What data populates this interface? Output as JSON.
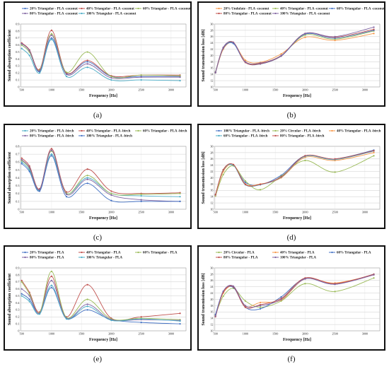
{
  "panels": [
    {
      "caption": "(a)",
      "chart_data": {
        "type": "line",
        "xlabel": "Frequency [Hz]",
        "ylabel": "Sound absorption coefficient",
        "ylim": [
          0,
          0.9
        ],
        "yticks": [
          "0",
          "0.1",
          "0.2",
          "0.3",
          "0.4",
          "0.5",
          "0.6",
          "0.7",
          "0.8",
          "0.9"
        ],
        "xticks": [
          "500",
          "1000",
          "1500",
          "2000",
          "2500",
          "3000"
        ],
        "x": [
          500,
          630,
          800,
          1000,
          1250,
          1600,
          2000,
          2500,
          3150
        ],
        "xlim": [
          480,
          3250
        ],
        "grid": "horizontal",
        "legend_position": "top",
        "series": [
          {
            "name": "20% Triangular - PLA -coconut",
            "color": "#4472C4",
            "values": [
              0.6,
              0.5,
              0.22,
              0.7,
              0.19,
              0.36,
              0.15,
              0.15,
              0.15
            ]
          },
          {
            "name": "40% Triangular - PLA -coconut",
            "color": "#C0504D",
            "values": [
              0.63,
              0.53,
              0.25,
              0.81,
              0.2,
              0.38,
              0.16,
              0.17,
              0.17
            ]
          },
          {
            "name": "60% Triangular - PLA -coconut",
            "color": "#9BBB59",
            "values": [
              0.6,
              0.5,
              0.24,
              0.76,
              0.21,
              0.5,
              0.15,
              0.17,
              0.16
            ]
          },
          {
            "name": "80% Triangular - PLA -coconut",
            "color": "#8064A2",
            "values": [
              0.62,
              0.52,
              0.23,
              0.74,
              0.18,
              0.33,
              0.13,
              0.14,
              0.14
            ]
          },
          {
            "name": "100% Triangular - PLA -coconut",
            "color": "#4BACC6",
            "values": [
              0.55,
              0.45,
              0.2,
              0.68,
              0.15,
              0.28,
              0.1,
              0.1,
              0.09
            ]
          }
        ]
      }
    },
    {
      "caption": "(b)",
      "chart_data": {
        "type": "line",
        "xlabel": "Frequency [Hz]",
        "ylabel": "Sound transmission loss [dB]",
        "ylim": [
          10,
          30
        ],
        "yticks": [
          "10",
          "12",
          "14",
          "16",
          "18",
          "20",
          "22",
          "24",
          "26",
          "28",
          "30"
        ],
        "xticks": [
          "500",
          "1000",
          "1500",
          "2000",
          "2500",
          "3000"
        ],
        "x": [
          500,
          630,
          800,
          1000,
          1250,
          1600,
          2000,
          2500,
          3150
        ],
        "xlim": [
          480,
          3250
        ],
        "grid": "horizontal",
        "legend_position": "top",
        "series": [
          {
            "name": "20% Undulate - PLA -coconut",
            "color": "#F79646",
            "values": [
              14.5,
              22,
              24,
              18.5,
              17.8,
              20.5,
              25.8,
              24.8,
              27
            ]
          },
          {
            "name": "40% Triangular - PLA -coconut",
            "color": "#9BBB59",
            "values": [
              14.8,
              22.5,
              24,
              18,
              17.5,
              20,
              26.5,
              25.2,
              27.8
            ]
          },
          {
            "name": "60% Triangular - PLA -coconut",
            "color": "#4472C4",
            "values": [
              14.5,
              22.3,
              23.8,
              17.8,
              17.3,
              19.8,
              26.8,
              25.5,
              28
            ]
          },
          {
            "name": "80% Triangular - PLA -coconut",
            "color": "#C0504D",
            "values": [
              14.6,
              22.5,
              24.2,
              17.8,
              17.4,
              19.9,
              27,
              25.8,
              28.3
            ]
          },
          {
            "name": "100% Triangular - PLA -coconut",
            "color": "#8064A2",
            "values": [
              14.7,
              22.6,
              24.1,
              18,
              17.6,
              20,
              27,
              26,
              29
            ]
          }
        ]
      }
    },
    {
      "caption": "(c)",
      "chart_data": {
        "type": "line",
        "xlabel": "Frequency [Hz]",
        "ylabel": "Sound absorption coefficient",
        "ylim": [
          0,
          0.8
        ],
        "yticks": [
          "0",
          "0.1",
          "0.2",
          "0.3",
          "0.4",
          "0.5",
          "0.6",
          "0.7",
          "0.8"
        ],
        "xticks": [
          "500",
          "1000",
          "1500",
          "2000",
          "2500",
          "3000"
        ],
        "x": [
          500,
          630,
          800,
          1000,
          1250,
          1600,
          2000,
          2500,
          3150
        ],
        "xlim": [
          480,
          3250
        ],
        "grid": "horizontal",
        "legend_position": "top",
        "series": [
          {
            "name": "20% Triangular - PLA -birch",
            "color": "#4BACC6",
            "values": [
              0.6,
              0.5,
              0.24,
              0.7,
              0.2,
              0.4,
              0.2,
              0.17,
              0.16
            ]
          },
          {
            "name": "40% Triangular - PLA -birch",
            "color": "#C0504D",
            "values": [
              0.65,
              0.55,
              0.26,
              0.77,
              0.22,
              0.51,
              0.23,
              0.2,
              0.21
            ]
          },
          {
            "name": "60% Triangular - PLA -birch",
            "color": "#9BBB59",
            "values": [
              0.62,
              0.52,
              0.25,
              0.74,
              0.2,
              0.43,
              0.2,
              0.19,
              0.2
            ]
          },
          {
            "name": "80% Triangular - PLA -birch",
            "color": "#8064A2",
            "values": [
              0.63,
              0.53,
              0.25,
              0.75,
              0.19,
              0.38,
              0.18,
              0.12,
              0.1
            ]
          },
          {
            "name": "100% Triangular - PLA -birch",
            "color": "#4472C4",
            "values": [
              0.58,
              0.48,
              0.23,
              0.68,
              0.16,
              0.33,
              0.11,
              0.1,
              0.1
            ]
          }
        ]
      }
    },
    {
      "caption": "(d)",
      "chart_data": {
        "type": "line",
        "xlabel": "Frequency [Hz]",
        "ylabel": "Sound transmission loss [dB]",
        "ylim": [
          10,
          30
        ],
        "yticks": [
          "10",
          "12",
          "14",
          "16",
          "18",
          "20",
          "22",
          "24",
          "26",
          "28",
          "30"
        ],
        "xticks": [
          "500",
          "1000",
          "1500",
          "2000",
          "2500",
          "3000"
        ],
        "x": [
          500,
          630,
          800,
          1000,
          1250,
          1600,
          2000,
          2500,
          3150
        ],
        "xlim": [
          480,
          3250
        ],
        "grid": "horizontal",
        "legend_position": "top",
        "series": [
          {
            "name": "100% Triangular - PLA -birch",
            "color": "#4472C4",
            "values": [
              14.5,
              22.3,
              24,
              18.5,
              17.8,
              20.8,
              27,
              26,
              28.8
            ]
          },
          {
            "name": "20% Circular - PLA -birch",
            "color": "#9BBB59",
            "values": [
              14.2,
              21,
              23.8,
              19,
              16.2,
              20.5,
              25.5,
              21.8,
              27
            ]
          },
          {
            "name": "40% Triangular - PLA -birch",
            "color": "#F79646",
            "values": [
              14.4,
              22,
              24.2,
              18,
              18,
              20,
              26.5,
              25.5,
              28
            ]
          },
          {
            "name": "60% Triangular - PLA -birch",
            "color": "#4BACC6",
            "values": [
              14.6,
              22.5,
              24,
              17.8,
              17.8,
              20.2,
              26.8,
              25.8,
              28.5
            ]
          },
          {
            "name": "80% Triangular - PLA -birch",
            "color": "#C0504D",
            "values": [
              14.7,
              22.6,
              24.2,
              17.9,
              17.9,
              20.3,
              27,
              26,
              28.6
            ]
          }
        ]
      }
    },
    {
      "caption": "(e)",
      "chart_data": {
        "type": "line",
        "xlabel": "Frequency [Hz]",
        "ylabel": "Sound absorption coefficient",
        "ylim": [
          0,
          0.9
        ],
        "yticks": [
          "0",
          "0.1",
          "0.2",
          "0.3",
          "0.4",
          "0.5",
          "0.6",
          "0.7",
          "0.8",
          "0.9"
        ],
        "xticks": [
          "500",
          "1000",
          "1500",
          "2000",
          "2500",
          "3000"
        ],
        "x": [
          500,
          630,
          800,
          1000,
          1250,
          1600,
          2000,
          2500,
          3150
        ],
        "xlim": [
          480,
          3250
        ],
        "grid": "horizontal",
        "legend_position": "top",
        "series": [
          {
            "name": "20% Triangular - PLA",
            "color": "#4472C4",
            "values": [
              0.53,
              0.45,
              0.25,
              0.62,
              0.18,
              0.3,
              0.16,
              0.12,
              0.1
            ]
          },
          {
            "name": "40% Triangular - PLA",
            "color": "#C0504D",
            "values": [
              0.72,
              0.55,
              0.27,
              0.78,
              0.2,
              0.66,
              0.18,
              0.2,
              0.25
            ]
          },
          {
            "name": "60% Triangular - PLA",
            "color": "#9BBB59",
            "values": [
              0.7,
              0.53,
              0.26,
              0.85,
              0.19,
              0.45,
              0.17,
              0.18,
              0.16
            ]
          },
          {
            "name": "80% Triangular - PLA",
            "color": "#8064A2",
            "values": [
              0.6,
              0.5,
              0.25,
              0.72,
              0.18,
              0.38,
              0.16,
              0.16,
              0.15
            ]
          },
          {
            "name": "100% Triangular - PLA",
            "color": "#4BACC6",
            "values": [
              0.5,
              0.42,
              0.24,
              0.65,
              0.17,
              0.35,
              0.15,
              0.17,
              0.14
            ]
          }
        ]
      }
    },
    {
      "caption": "(f)",
      "chart_data": {
        "type": "line",
        "xlabel": "Frequency [Hz]",
        "ylabel": "Sound transmission loss [dB]",
        "ylim": [
          10,
          30
        ],
        "yticks": [
          "10",
          "12",
          "14",
          "16",
          "18",
          "20",
          "22",
          "24",
          "26",
          "28",
          "30"
        ],
        "xticks": [
          "500",
          "1000",
          "1500",
          "2000",
          "2500",
          "3000"
        ],
        "x": [
          500,
          630,
          800,
          1000,
          1250,
          1600,
          2000,
          2500,
          3150
        ],
        "xlim": [
          480,
          3250
        ],
        "grid": "horizontal",
        "legend_position": "top",
        "series": [
          {
            "name": "20% Circular - PLA",
            "color": "#9BBB59",
            "values": [
              15,
              21,
              23.5,
              19.5,
              17.5,
              19.5,
              25,
              22.5,
              26.8
            ]
          },
          {
            "name": "40% Triangular - PLA",
            "color": "#F79646",
            "values": [
              14.8,
              22,
              24,
              17.8,
              19,
              19.8,
              26.5,
              25.2,
              27.8
            ]
          },
          {
            "name": "60% Triangular - PLA",
            "color": "#4472C4",
            "values": [
              15.2,
              22.5,
              23.8,
              17.5,
              17,
              20.8,
              26.6,
              24.8,
              28
            ]
          },
          {
            "name": "80% Triangular - PLA",
            "color": "#C0504D",
            "values": [
              14.5,
              22.3,
              24,
              17.5,
              18.3,
              20.3,
              26.8,
              25,
              28
            ]
          },
          {
            "name": "100% Triangular - PLA",
            "color": "#8064A2",
            "values": [
              14.7,
              22.6,
              24.2,
              18,
              18,
              20,
              26.5,
              24.8,
              27.8
            ]
          }
        ]
      }
    }
  ]
}
